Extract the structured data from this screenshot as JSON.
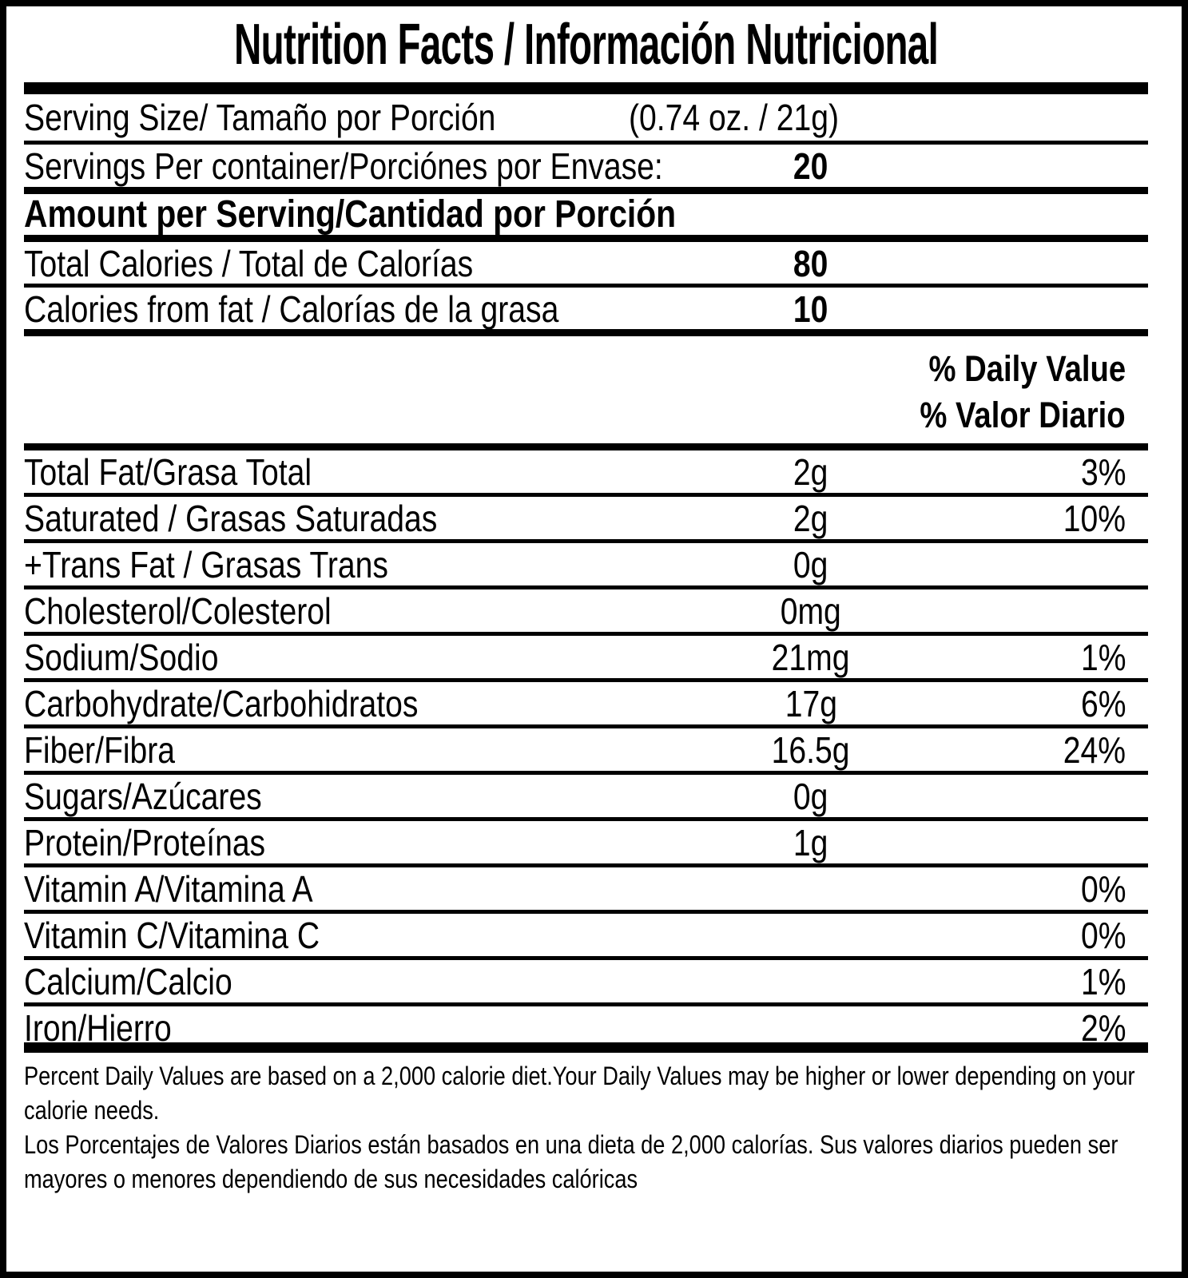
{
  "label": {
    "title": "Nutrition Facts / Información Nutricional",
    "serving_size": {
      "label": "Serving Size/ Tamaño por Porción",
      "value": "(0.74 oz. / 21g)"
    },
    "servings_per_container": {
      "label": "Servings Per container/Porciónes por Envase:",
      "value": "20"
    },
    "amount_per_serving_heading": "Amount per Serving/Cantidad por Porción",
    "calorie_rows": [
      {
        "label": "Total Calories / Total de Calorías",
        "value": "80"
      },
      {
        "label": "Calories from fat / Calorías de la grasa",
        "value": "10"
      }
    ],
    "daily_value_heading": {
      "line1": "% Daily Value",
      "line2": "% Valor Diario"
    },
    "nutrient_rows": [
      {
        "label": "Total Fat/Grasa Total",
        "value": "2g",
        "dv": "3%"
      },
      {
        "label": "Saturated / Grasas Saturadas",
        "value": "2g",
        "dv": "10%"
      },
      {
        "label": "+Trans Fat / Grasas Trans",
        "value": "0g",
        "dv": ""
      },
      {
        "label": "Cholesterol/Colesterol",
        "value": "0mg",
        "dv": ""
      },
      {
        "label": "Sodium/Sodio",
        "value": "21mg",
        "dv": "1%"
      },
      {
        "label": "Carbohydrate/Carbohidratos",
        "value": "17g",
        "dv": "6%"
      },
      {
        "label": "Fiber/Fibra",
        "value": "16.5g",
        "dv": "24%"
      },
      {
        "label": "Sugars/Azúcares",
        "value": "0g",
        "dv": ""
      },
      {
        "label": "Protein/Proteínas",
        "value": "1g",
        "dv": ""
      },
      {
        "label": "Vitamin A/Vitamina A",
        "value": "",
        "dv": "0%"
      },
      {
        "label": "Vitamin C/Vitamina C",
        "value": "",
        "dv": "0%"
      },
      {
        "label": "Calcium/Calcio",
        "value": "",
        "dv": "1%"
      },
      {
        "label": "Iron/Hierro",
        "value": "",
        "dv": "2%"
      }
    ],
    "footnote_en": "Percent Daily Values are based on a 2,000 calorie diet.Your Daily Values may be higher or lower depending on your calorie needs.",
    "footnote_es": "Los Porcentajes de Valores Diarios están basados en una dieta de 2,000 calorías. Sus valores diarios pueden ser mayores o menores dependiendo de sus necesidades calóricas"
  },
  "colors": {
    "ink": "#000000",
    "background": "#ffffff"
  }
}
